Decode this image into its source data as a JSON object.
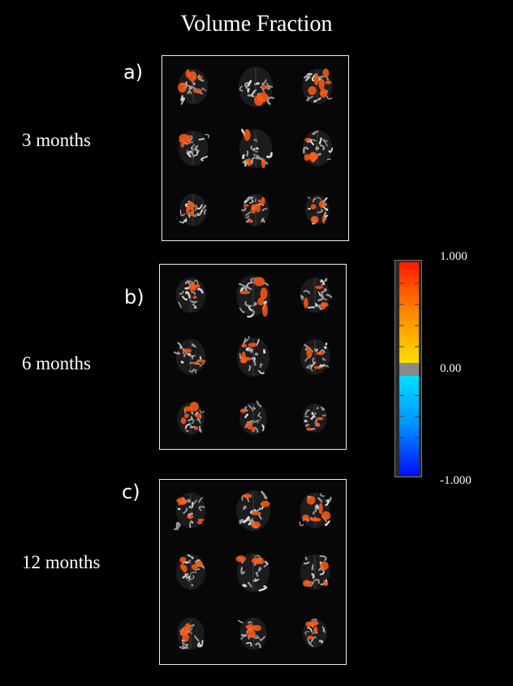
{
  "figure": {
    "title": "Volume Fraction",
    "panels": [
      {
        "letter": "a)",
        "timepoint": "3 months"
      },
      {
        "letter": "b)",
        "timepoint": "6 months"
      },
      {
        "letter": "c)",
        "timepoint": "12 months"
      }
    ],
    "colorbar": {
      "max_label": "1.000",
      "mid_label": "0.00",
      "min_label": "-1.000",
      "colors": [
        "#ff2200",
        "#ff8800",
        "#ffdd00",
        "#888888",
        "#00ccff",
        "#0033ff"
      ]
    },
    "brain_slice_icon": "axial-brain-slice-icon",
    "overlay_color": "#ff5a14"
  }
}
